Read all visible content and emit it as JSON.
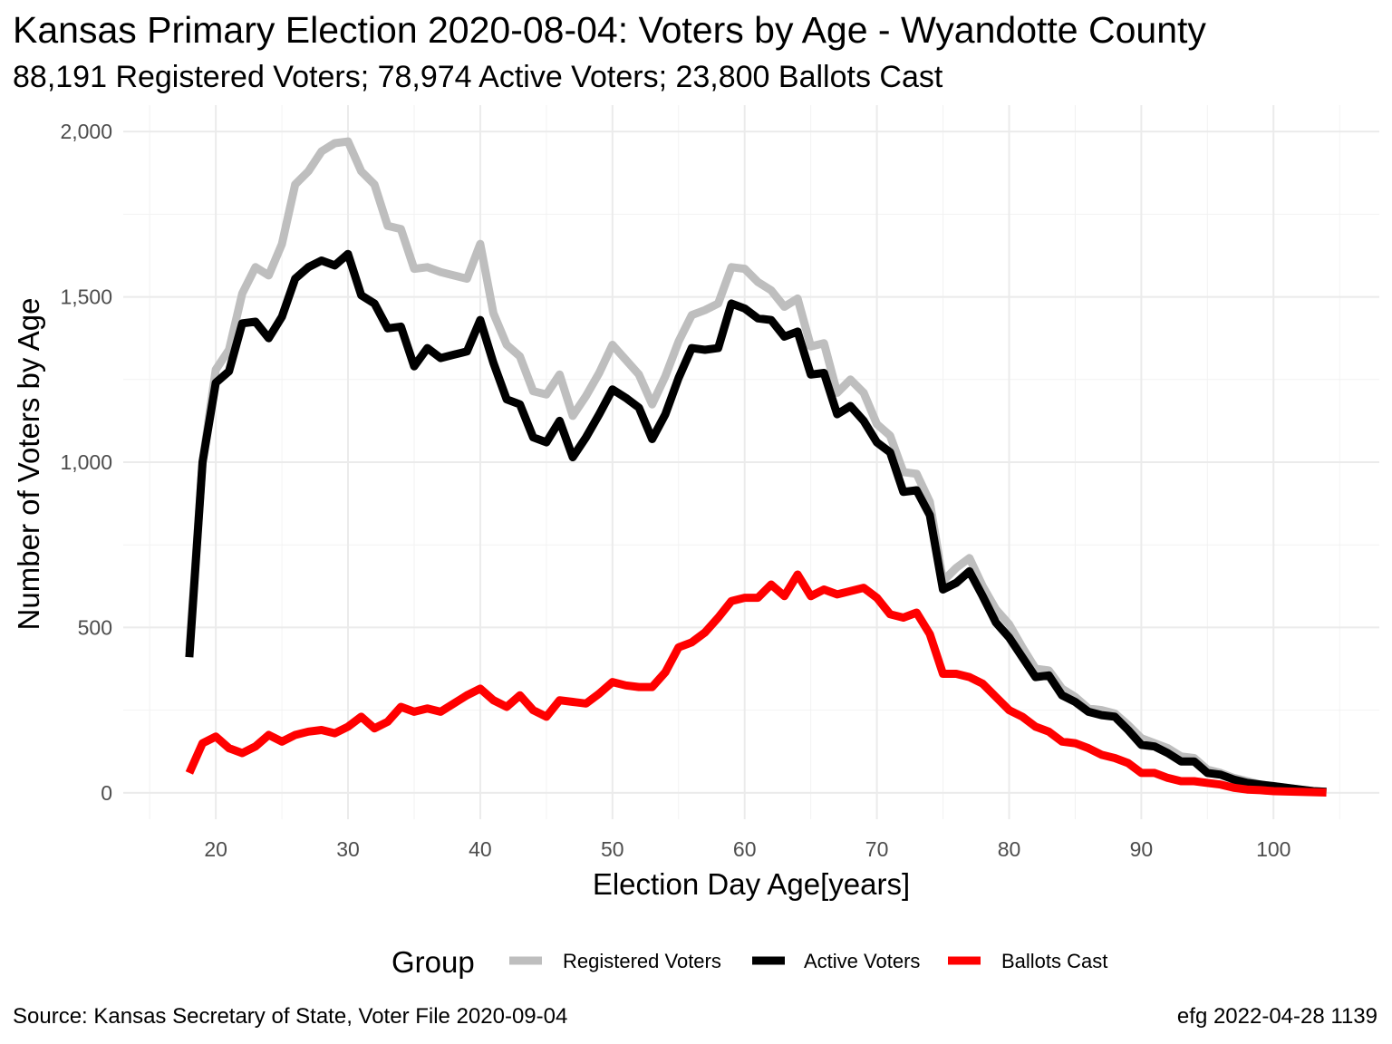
{
  "title": "Kansas Primary Election 2020-08-04:  Voters by Age - Wyandotte County",
  "subtitle": "88,191 Registered Voters; 78,974 Active Voters; 23,800 Ballots Cast",
  "source": "Source:  Kansas Secretary of State, Voter File  2020-09-04",
  "credit": "efg 2022-04-28 1139",
  "chart_data": {
    "type": "line",
    "xlabel": "Election Day Age[years]",
    "ylabel": "Number of Voters by Age",
    "xlim": [
      13,
      108
    ],
    "ylim": [
      -80,
      2080
    ],
    "x_ticks": [
      20,
      30,
      40,
      50,
      60,
      70,
      80,
      90,
      100
    ],
    "x_tick_labels": [
      "20",
      "30",
      "40",
      "50",
      "60",
      "70",
      "80",
      "90",
      "100"
    ],
    "y_ticks": [
      0,
      500,
      1000,
      1500,
      2000
    ],
    "y_tick_labels": [
      "0",
      "500",
      "1,000",
      "1,500",
      "2,000"
    ],
    "grid": true,
    "legend_title": "Group",
    "legend_position": "bottom",
    "x": [
      18,
      19,
      20,
      21,
      22,
      23,
      24,
      25,
      26,
      27,
      28,
      29,
      30,
      31,
      32,
      33,
      34,
      35,
      36,
      37,
      38,
      39,
      40,
      41,
      42,
      43,
      44,
      45,
      46,
      47,
      48,
      49,
      50,
      51,
      52,
      53,
      54,
      55,
      56,
      57,
      58,
      59,
      60,
      61,
      62,
      63,
      64,
      65,
      66,
      67,
      68,
      69,
      70,
      71,
      72,
      73,
      74,
      75,
      76,
      77,
      78,
      79,
      80,
      81,
      82,
      83,
      84,
      85,
      86,
      87,
      88,
      89,
      90,
      91,
      92,
      93,
      94,
      95,
      96,
      97,
      98,
      99,
      100,
      101,
      102,
      103,
      104
    ],
    "series": [
      {
        "name": "Registered Voters",
        "color": "#bebebe",
        "values": [
          430,
          1000,
          1280,
          1340,
          1510,
          1590,
          1565,
          1660,
          1840,
          1880,
          1940,
          1965,
          1970,
          1880,
          1840,
          1715,
          1705,
          1585,
          1590,
          1575,
          1565,
          1555,
          1660,
          1450,
          1355,
          1320,
          1215,
          1205,
          1265,
          1140,
          1200,
          1270,
          1355,
          1310,
          1265,
          1175,
          1260,
          1365,
          1445,
          1460,
          1480,
          1590,
          1585,
          1545,
          1520,
          1470,
          1495,
          1350,
          1360,
          1210,
          1250,
          1210,
          1115,
          1080,
          970,
          965,
          880,
          640,
          680,
          710,
          625,
          555,
          510,
          440,
          375,
          370,
          315,
          290,
          255,
          250,
          240,
          205,
          165,
          150,
          135,
          110,
          105,
          70,
          60,
          45,
          35,
          25,
          20,
          15,
          10,
          5,
          3
        ]
      },
      {
        "name": "Active Voters",
        "color": "#000000",
        "values": [
          410,
          1000,
          1240,
          1275,
          1420,
          1425,
          1375,
          1440,
          1555,
          1590,
          1610,
          1595,
          1630,
          1505,
          1480,
          1405,
          1410,
          1290,
          1345,
          1315,
          1325,
          1335,
          1430,
          1300,
          1190,
          1175,
          1075,
          1060,
          1125,
          1015,
          1075,
          1145,
          1220,
          1195,
          1165,
          1070,
          1145,
          1255,
          1345,
          1340,
          1345,
          1480,
          1465,
          1435,
          1430,
          1380,
          1395,
          1265,
          1270,
          1145,
          1170,
          1125,
          1060,
          1030,
          910,
          915,
          840,
          615,
          635,
          670,
          595,
          515,
          470,
          410,
          350,
          355,
          295,
          275,
          245,
          235,
          230,
          190,
          145,
          140,
          120,
          95,
          95,
          60,
          55,
          40,
          30,
          25,
          20,
          15,
          10,
          5,
          3
        ]
      },
      {
        "name": "Ballots Cast",
        "color": "#ff0000",
        "values": [
          60,
          150,
          170,
          135,
          120,
          140,
          175,
          155,
          175,
          185,
          190,
          180,
          200,
          230,
          195,
          215,
          260,
          245,
          255,
          245,
          270,
          295,
          315,
          280,
          260,
          295,
          250,
          230,
          280,
          275,
          270,
          300,
          335,
          325,
          320,
          320,
          365,
          440,
          455,
          485,
          530,
          580,
          590,
          590,
          630,
          595,
          660,
          595,
          615,
          600,
          610,
          620,
          590,
          540,
          530,
          545,
          480,
          360,
          360,
          350,
          330,
          290,
          250,
          230,
          200,
          185,
          155,
          150,
          135,
          115,
          105,
          90,
          60,
          60,
          45,
          35,
          35,
          30,
          25,
          15,
          10,
          8,
          5,
          4,
          3,
          2,
          1
        ]
      }
    ]
  }
}
